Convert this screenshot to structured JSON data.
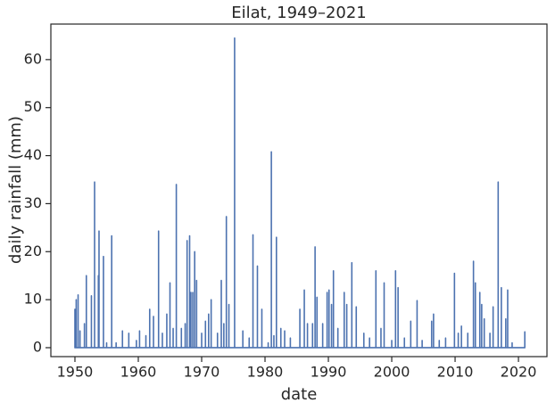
{
  "chart_data": {
    "type": "line",
    "title": "Eilat, 1949–2021",
    "xlabel": "date",
    "ylabel": "daily rainfall (mm)",
    "color": "#4c72b0",
    "x": [
      1950.0,
      1950.0,
      1950.0,
      1950.2,
      1950.2,
      1950.2,
      1950.5,
      1950.5,
      1950.5,
      1950.8,
      1950.8,
      1950.8,
      1951.5,
      1951.5,
      1951.5,
      1951.8,
      1951.8,
      1951.8,
      1952.6,
      1952.6,
      1952.6,
      1953.1,
      1953.1,
      1953.1,
      1953.7,
      1953.7,
      1953.7,
      1953.8,
      1953.8,
      1953.8,
      1954.5,
      1954.5,
      1954.5,
      1955.0,
      1955.0,
      1955.0,
      1955.8,
      1955.8,
      1955.8,
      1956.5,
      1956.5,
      1956.5,
      1957.5,
      1957.5,
      1957.5,
      1958.5,
      1958.5,
      1958.5,
      1959.7,
      1959.7,
      1959.7,
      1960.2,
      1960.2,
      1960.2,
      1961.2,
      1961.2,
      1961.2,
      1961.8,
      1961.8,
      1961.8,
      1962.4,
      1962.4,
      1962.4,
      1963.2,
      1963.2,
      1963.2,
      1963.8,
      1963.8,
      1963.8,
      1964.5,
      1964.5,
      1964.5,
      1965.0,
      1965.0,
      1965.0,
      1965.5,
      1965.5,
      1965.5,
      1966.0,
      1966.0,
      1966.0,
      1966.8,
      1966.8,
      1966.8,
      1967.4,
      1967.4,
      1967.4,
      1967.7,
      1967.7,
      1967.7,
      1968.1,
      1968.1,
      1968.1,
      1968.3,
      1968.3,
      1968.3,
      1968.6,
      1968.6,
      1968.6,
      1968.9,
      1968.9,
      1968.9,
      1969.2,
      1969.2,
      1969.2,
      1970.0,
      1970.0,
      1970.0,
      1970.6,
      1970.6,
      1970.6,
      1971.1,
      1971.1,
      1971.1,
      1971.5,
      1971.5,
      1971.5,
      1972.5,
      1972.5,
      1972.5,
      1973.1,
      1973.1,
      1973.1,
      1973.5,
      1973.5,
      1973.5,
      1973.9,
      1973.9,
      1973.9,
      1974.3,
      1974.3,
      1974.3,
      1975.2,
      1975.2,
      1975.2,
      1976.5,
      1976.5,
      1976.5,
      1977.5,
      1977.5,
      1977.5,
      1978.1,
      1978.1,
      1978.1,
      1978.8,
      1978.8,
      1978.8,
      1979.5,
      1979.5,
      1979.5,
      1980.5,
      1980.5,
      1980.5,
      1981.0,
      1981.0,
      1981.0,
      1981.4,
      1981.4,
      1981.4,
      1981.8,
      1981.8,
      1981.8,
      1982.5,
      1982.5,
      1982.5,
      1983.1,
      1983.1,
      1983.1,
      1984.0,
      1984.0,
      1984.0,
      1985.5,
      1985.5,
      1985.5,
      1986.2,
      1986.2,
      1986.2,
      1986.7,
      1986.7,
      1986.7,
      1987.5,
      1987.5,
      1987.5,
      1987.9,
      1987.9,
      1987.9,
      1988.2,
      1988.2,
      1988.2,
      1989.1,
      1989.1,
      1989.1,
      1989.8,
      1989.8,
      1989.8,
      1990.1,
      1990.1,
      1990.1,
      1990.5,
      1990.5,
      1990.5,
      1990.8,
      1990.8,
      1990.8,
      1991.5,
      1991.5,
      1991.5,
      1992.5,
      1992.5,
      1992.5,
      1992.9,
      1992.9,
      1992.9,
      1993.7,
      1993.7,
      1993.7,
      1994.4,
      1994.4,
      1994.4,
      1995.6,
      1995.6,
      1995.6,
      1996.5,
      1996.5,
      1996.5,
      1997.5,
      1997.5,
      1997.5,
      1998.3,
      1998.3,
      1998.3,
      1998.8,
      1998.8,
      1998.8,
      2000.0,
      2000.0,
      2000.0,
      2000.6,
      2000.6,
      2000.6,
      2001.0,
      2001.0,
      2001.0,
      2002.0,
      2002.0,
      2002.0,
      2003.0,
      2003.0,
      2003.0,
      2004.0,
      2004.0,
      2004.0,
      2004.8,
      2004.8,
      2004.8,
      2006.3,
      2006.3,
      2006.3,
      2006.6,
      2006.6,
      2006.6,
      2007.5,
      2007.5,
      2007.5,
      2008.5,
      2008.5,
      2008.5,
      2009.9,
      2009.9,
      2009.9,
      2010.5,
      2010.5,
      2010.5,
      2011.0,
      2011.0,
      2011.0,
      2012.0,
      2012.0,
      2012.0,
      2012.9,
      2012.9,
      2012.9,
      2013.2,
      2013.2,
      2013.2,
      2013.9,
      2013.9,
      2013.9,
      2014.2,
      2014.2,
      2014.2,
      2014.6,
      2014.6,
      2014.6,
      2015.5,
      2015.5,
      2015.5,
      2016.0,
      2016.0,
      2016.0,
      2016.8,
      2016.8,
      2016.8,
      2017.3,
      2017.3,
      2017.3,
      2018.0,
      2018.0,
      2018.0,
      2018.3,
      2018.3,
      2018.3,
      2019.0,
      2019.0,
      2019.0,
      2021.0,
      2021.0,
      2021.0
    ],
    "values": [
      0,
      8,
      0,
      0,
      10,
      0,
      0,
      11,
      0,
      0,
      3.5,
      0,
      0,
      5,
      0,
      0,
      15,
      0,
      0,
      10.8,
      0,
      0,
      34.5,
      0,
      0,
      15,
      0,
      0,
      24.3,
      0,
      0,
      19,
      0,
      0,
      1,
      0,
      0,
      23.3,
      0,
      0,
      1,
      0,
      0,
      3.5,
      0,
      0,
      3,
      0,
      0,
      1.5,
      0,
      0,
      3.5,
      0,
      0,
      2.5,
      0,
      0,
      8,
      0,
      0,
      6.5,
      0,
      0,
      24.3,
      0,
      0,
      3,
      0,
      0,
      7,
      0,
      0,
      13.5,
      0,
      0,
      4,
      0,
      0,
      34,
      0,
      0,
      4,
      0,
      0,
      5,
      0,
      0,
      22.3,
      0,
      0,
      23.3,
      0,
      0,
      11.5,
      0,
      0,
      11.5,
      0,
      0,
      20,
      0,
      0,
      14,
      0,
      0,
      3,
      0,
      0,
      5.5,
      0,
      0,
      7,
      0,
      0,
      10,
      0,
      0,
      3,
      0,
      0,
      14,
      0,
      0,
      5,
      0,
      0,
      27.3,
      0,
      0,
      9,
      0,
      0,
      64.5,
      0,
      0,
      3.5,
      0,
      0,
      2,
      0,
      0,
      23.5,
      0,
      0,
      17,
      0,
      0,
      8,
      0,
      0,
      1,
      0,
      0,
      40.8,
      0,
      0,
      2.5,
      0,
      0,
      23,
      0,
      0,
      4,
      0,
      0,
      3.5,
      0,
      0,
      2,
      0,
      0,
      8,
      0,
      0,
      12,
      0,
      0,
      5,
      0,
      0,
      5,
      0,
      0,
      21,
      0,
      0,
      10.5,
      0,
      0,
      5,
      0,
      0,
      11.5,
      0,
      0,
      12,
      0,
      0,
      9,
      0,
      0,
      16,
      0,
      0,
      4,
      0,
      0,
      11.5,
      0,
      0,
      9,
      0,
      0,
      17.7,
      0,
      0,
      8.5,
      0,
      0,
      3,
      0,
      0,
      2,
      0,
      0,
      16,
      0,
      0,
      4,
      0,
      0,
      13.5,
      0,
      0,
      1.5,
      0,
      0,
      16,
      0,
      0,
      12.5,
      0,
      0,
      2,
      0,
      0,
      5.5,
      0,
      0,
      9.8,
      0,
      0,
      1.5,
      0,
      0,
      5.5,
      0,
      0,
      7,
      0,
      0,
      1.5,
      0,
      0,
      2,
      0,
      0,
      15.5,
      0,
      0,
      3,
      0,
      0,
      4.5,
      0,
      0,
      3,
      0,
      0,
      18,
      0,
      0,
      13.5,
      0,
      0,
      11.5,
      0,
      0,
      9,
      0,
      0,
      6,
      0,
      0,
      3,
      0,
      0,
      8.5,
      0,
      0,
      34.5,
      0,
      0,
      12.5,
      0,
      0,
      6,
      0,
      0,
      12,
      0,
      0,
      1,
      0,
      0,
      3.3,
      0
    ],
    "xlim": [
      1946.2,
      2024.5
    ],
    "ylim": [
      -1.86,
      67.4
    ],
    "xticks": [
      1950,
      1960,
      1970,
      1980,
      1990,
      2000,
      2010,
      2020
    ],
    "yticks": [
      0,
      10,
      20,
      30,
      40,
      50,
      60
    ]
  }
}
